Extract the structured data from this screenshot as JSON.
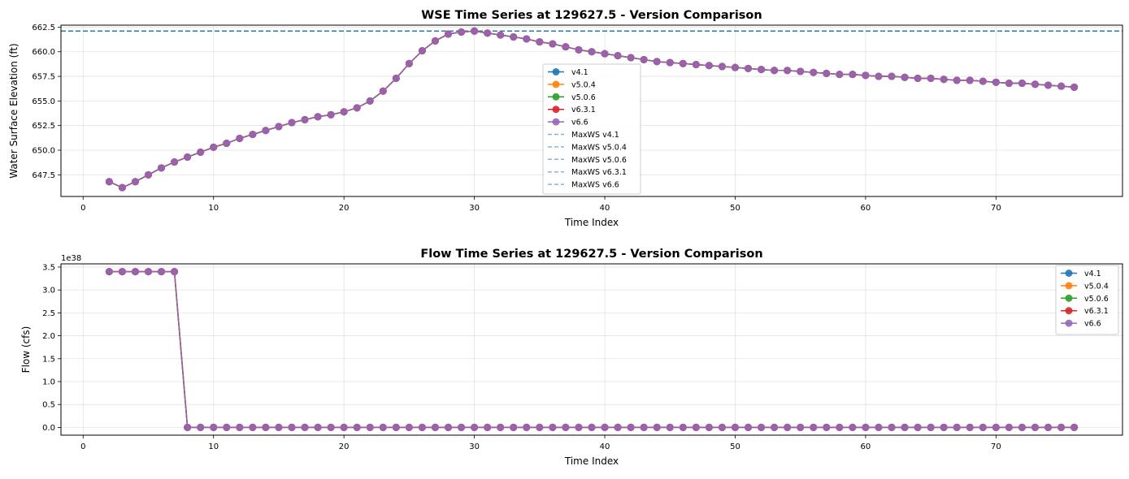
{
  "chart_data": [
    {
      "type": "line",
      "title": "WSE Time Series at 129627.5 - Version Comparison",
      "xlabel": "Time Index",
      "ylabel": "Water Surface Elevation (ft)",
      "xlim": [
        -1.7,
        79.7
      ],
      "ylim": [
        645.3,
        662.7
      ],
      "xticks": [
        0,
        10,
        20,
        30,
        40,
        50,
        60,
        70
      ],
      "yticks": [
        647.5,
        650.0,
        652.5,
        655.0,
        657.5,
        660.0,
        662.5
      ],
      "ytick_labels": [
        "647.5",
        "650.0",
        "652.5",
        "655.0",
        "657.5",
        "660.0",
        "662.5"
      ],
      "grid": true,
      "legend_position": "center",
      "x": [
        2,
        3,
        4,
        5,
        6,
        7,
        8,
        9,
        10,
        11,
        12,
        13,
        14,
        15,
        16,
        17,
        18,
        19,
        20,
        21,
        22,
        23,
        24,
        25,
        26,
        27,
        28,
        29,
        30,
        31,
        32,
        33,
        34,
        35,
        36,
        37,
        38,
        39,
        40,
        41,
        42,
        43,
        44,
        45,
        46,
        47,
        48,
        49,
        50,
        51,
        52,
        53,
        54,
        55,
        56,
        57,
        58,
        59,
        60,
        61,
        62,
        63,
        64,
        65,
        66,
        67,
        68,
        69,
        70,
        71,
        72,
        73,
        74,
        75,
        76
      ],
      "series": [
        {
          "name": "v4.1",
          "color": "#1f77b4",
          "values": [
            646.8,
            646.2,
            646.8,
            647.5,
            648.2,
            648.8,
            649.3,
            649.8,
            650.3,
            650.7,
            651.2,
            651.6,
            652.0,
            652.4,
            652.8,
            653.1,
            653.4,
            653.6,
            653.9,
            654.3,
            655.0,
            656.0,
            657.3,
            658.8,
            660.1,
            661.1,
            661.8,
            662.0,
            662.1,
            661.9,
            661.7,
            661.5,
            661.3,
            661.0,
            660.8,
            660.5,
            660.2,
            660.0,
            659.8,
            659.6,
            659.4,
            659.2,
            659.0,
            658.9,
            658.8,
            658.7,
            658.6,
            658.5,
            658.4,
            658.3,
            658.2,
            658.1,
            658.1,
            658.0,
            657.9,
            657.8,
            657.7,
            657.7,
            657.6,
            657.5,
            657.5,
            657.4,
            657.3,
            657.3,
            657.2,
            657.1,
            657.1,
            657.0,
            656.9,
            656.8,
            656.8,
            656.7,
            656.6,
            656.5,
            656.4
          ]
        },
        {
          "name": "v5.0.4",
          "color": "#ff7f0e",
          "values": [
            646.8,
            646.2,
            646.8,
            647.5,
            648.2,
            648.8,
            649.3,
            649.8,
            650.3,
            650.7,
            651.2,
            651.6,
            652.0,
            652.4,
            652.8,
            653.1,
            653.4,
            653.6,
            653.9,
            654.3,
            655.0,
            656.0,
            657.3,
            658.8,
            660.1,
            661.1,
            661.8,
            662.0,
            662.1,
            661.9,
            661.7,
            661.5,
            661.3,
            661.0,
            660.8,
            660.5,
            660.2,
            660.0,
            659.8,
            659.6,
            659.4,
            659.2,
            659.0,
            658.9,
            658.8,
            658.7,
            658.6,
            658.5,
            658.4,
            658.3,
            658.2,
            658.1,
            658.1,
            658.0,
            657.9,
            657.8,
            657.7,
            657.7,
            657.6,
            657.5,
            657.5,
            657.4,
            657.3,
            657.3,
            657.2,
            657.1,
            657.1,
            657.0,
            656.9,
            656.8,
            656.8,
            656.7,
            656.6,
            656.5,
            656.4
          ]
        },
        {
          "name": "v5.0.6",
          "color": "#2ca02c",
          "values": [
            646.8,
            646.2,
            646.8,
            647.5,
            648.2,
            648.8,
            649.3,
            649.8,
            650.3,
            650.7,
            651.2,
            651.6,
            652.0,
            652.4,
            652.8,
            653.1,
            653.4,
            653.6,
            653.9,
            654.3,
            655.0,
            656.0,
            657.3,
            658.8,
            660.1,
            661.1,
            661.8,
            662.0,
            662.1,
            661.9,
            661.7,
            661.5,
            661.3,
            661.0,
            660.8,
            660.5,
            660.2,
            660.0,
            659.8,
            659.6,
            659.4,
            659.2,
            659.0,
            658.9,
            658.8,
            658.7,
            658.6,
            658.5,
            658.4,
            658.3,
            658.2,
            658.1,
            658.1,
            658.0,
            657.9,
            657.8,
            657.7,
            657.7,
            657.6,
            657.5,
            657.5,
            657.4,
            657.3,
            657.3,
            657.2,
            657.1,
            657.1,
            657.0,
            656.9,
            656.8,
            656.8,
            656.7,
            656.6,
            656.5,
            656.4
          ]
        },
        {
          "name": "v6.3.1",
          "color": "#d62728",
          "values": [
            646.8,
            646.2,
            646.8,
            647.5,
            648.2,
            648.8,
            649.3,
            649.8,
            650.3,
            650.7,
            651.2,
            651.6,
            652.0,
            652.4,
            652.8,
            653.1,
            653.4,
            653.6,
            653.9,
            654.3,
            655.0,
            656.0,
            657.3,
            658.8,
            660.1,
            661.1,
            661.8,
            662.0,
            662.1,
            661.9,
            661.7,
            661.5,
            661.3,
            661.0,
            660.8,
            660.5,
            660.2,
            660.0,
            659.8,
            659.6,
            659.4,
            659.2,
            659.0,
            658.9,
            658.8,
            658.7,
            658.6,
            658.5,
            658.4,
            658.3,
            658.2,
            658.1,
            658.1,
            658.0,
            657.9,
            657.8,
            657.7,
            657.7,
            657.6,
            657.5,
            657.5,
            657.4,
            657.3,
            657.3,
            657.2,
            657.1,
            657.1,
            657.0,
            656.9,
            656.8,
            656.8,
            656.7,
            656.6,
            656.5,
            656.4
          ]
        },
        {
          "name": "v6.6",
          "color": "#9467bd",
          "values": [
            646.8,
            646.2,
            646.8,
            647.5,
            648.2,
            648.8,
            649.3,
            649.8,
            650.3,
            650.7,
            651.2,
            651.6,
            652.0,
            652.4,
            652.8,
            653.1,
            653.4,
            653.6,
            653.9,
            654.3,
            655.0,
            656.0,
            657.3,
            658.8,
            660.1,
            661.1,
            661.8,
            662.0,
            662.1,
            661.9,
            661.7,
            661.5,
            661.3,
            661.0,
            660.8,
            660.5,
            660.2,
            660.0,
            659.8,
            659.6,
            659.4,
            659.2,
            659.0,
            658.9,
            658.8,
            658.7,
            658.6,
            658.5,
            658.4,
            658.3,
            658.2,
            658.1,
            658.1,
            658.0,
            657.9,
            657.8,
            657.7,
            657.7,
            657.6,
            657.5,
            657.5,
            657.4,
            657.3,
            657.3,
            657.2,
            657.1,
            657.1,
            657.0,
            656.9,
            656.8,
            656.8,
            656.7,
            656.6,
            656.5,
            656.4
          ]
        }
      ],
      "hlines": [
        {
          "name": "MaxWS v4.1",
          "value": 662.1,
          "color": "#1f77b4"
        },
        {
          "name": "MaxWS v5.0.4",
          "value": 662.1,
          "color": "#1f77b4"
        },
        {
          "name": "MaxWS v5.0.6",
          "value": 662.1,
          "color": "#1f77b4"
        },
        {
          "name": "MaxWS v6.3.1",
          "value": 662.1,
          "color": "#1f77b4"
        },
        {
          "name": "MaxWS v6.6",
          "value": 662.1,
          "color": "#1f77b4"
        }
      ]
    },
    {
      "type": "line",
      "title": "Flow Time Series at 129627.5 - Version Comparison",
      "xlabel": "Time Index",
      "ylabel": "Flow (cfs)",
      "y_scale_label": "1e38",
      "y_unit_multiplier": "1e38",
      "xlim": [
        -1.7,
        79.7
      ],
      "ylim": [
        -0.17,
        3.57
      ],
      "xticks": [
        0,
        10,
        20,
        30,
        40,
        50,
        60,
        70
      ],
      "yticks": [
        0.0,
        0.5,
        1.0,
        1.5,
        2.0,
        2.5,
        3.0,
        3.5
      ],
      "ytick_labels": [
        "0.0",
        "0.5",
        "1.0",
        "1.5",
        "2.0",
        "2.5",
        "3.0",
        "3.5"
      ],
      "grid": true,
      "legend_position": "top-right",
      "x": [
        2,
        3,
        4,
        5,
        6,
        7,
        8,
        9,
        10,
        11,
        12,
        13,
        14,
        15,
        16,
        17,
        18,
        19,
        20,
        21,
        22,
        23,
        24,
        25,
        26,
        27,
        28,
        29,
        30,
        31,
        32,
        33,
        34,
        35,
        36,
        37,
        38,
        39,
        40,
        41,
        42,
        43,
        44,
        45,
        46,
        47,
        48,
        49,
        50,
        51,
        52,
        53,
        54,
        55,
        56,
        57,
        58,
        59,
        60,
        61,
        62,
        63,
        64,
        65,
        66,
        67,
        68,
        69,
        70,
        71,
        72,
        73,
        74,
        75,
        76
      ],
      "series": [
        {
          "name": "v4.1",
          "color": "#1f77b4",
          "values": [
            3.4,
            3.4,
            3.4,
            3.4,
            3.4,
            3.4,
            0,
            0,
            0,
            0,
            0,
            0,
            0,
            0,
            0,
            0,
            0,
            0,
            0,
            0,
            0,
            0,
            0,
            0,
            0,
            0,
            0,
            0,
            0,
            0,
            0,
            0,
            0,
            0,
            0,
            0,
            0,
            0,
            0,
            0,
            0,
            0,
            0,
            0,
            0,
            0,
            0,
            0,
            0,
            0,
            0,
            0,
            0,
            0,
            0,
            0,
            0,
            0,
            0,
            0,
            0,
            0,
            0,
            0,
            0,
            0,
            0,
            0,
            0,
            0,
            0,
            0,
            0,
            0,
            0
          ]
        },
        {
          "name": "v5.0.4",
          "color": "#ff7f0e",
          "values": [
            3.4,
            3.4,
            3.4,
            3.4,
            3.4,
            3.4,
            0,
            0,
            0,
            0,
            0,
            0,
            0,
            0,
            0,
            0,
            0,
            0,
            0,
            0,
            0,
            0,
            0,
            0,
            0,
            0,
            0,
            0,
            0,
            0,
            0,
            0,
            0,
            0,
            0,
            0,
            0,
            0,
            0,
            0,
            0,
            0,
            0,
            0,
            0,
            0,
            0,
            0,
            0,
            0,
            0,
            0,
            0,
            0,
            0,
            0,
            0,
            0,
            0,
            0,
            0,
            0,
            0,
            0,
            0,
            0,
            0,
            0,
            0,
            0,
            0,
            0,
            0,
            0,
            0
          ]
        },
        {
          "name": "v5.0.6",
          "color": "#2ca02c",
          "values": [
            3.4,
            3.4,
            3.4,
            3.4,
            3.4,
            3.4,
            0,
            0,
            0,
            0,
            0,
            0,
            0,
            0,
            0,
            0,
            0,
            0,
            0,
            0,
            0,
            0,
            0,
            0,
            0,
            0,
            0,
            0,
            0,
            0,
            0,
            0,
            0,
            0,
            0,
            0,
            0,
            0,
            0,
            0,
            0,
            0,
            0,
            0,
            0,
            0,
            0,
            0,
            0,
            0,
            0,
            0,
            0,
            0,
            0,
            0,
            0,
            0,
            0,
            0,
            0,
            0,
            0,
            0,
            0,
            0,
            0,
            0,
            0,
            0,
            0,
            0,
            0,
            0,
            0
          ]
        },
        {
          "name": "v6.3.1",
          "color": "#d62728",
          "values": [
            3.4,
            3.4,
            3.4,
            3.4,
            3.4,
            3.4,
            0,
            0,
            0,
            0,
            0,
            0,
            0,
            0,
            0,
            0,
            0,
            0,
            0,
            0,
            0,
            0,
            0,
            0,
            0,
            0,
            0,
            0,
            0,
            0,
            0,
            0,
            0,
            0,
            0,
            0,
            0,
            0,
            0,
            0,
            0,
            0,
            0,
            0,
            0,
            0,
            0,
            0,
            0,
            0,
            0,
            0,
            0,
            0,
            0,
            0,
            0,
            0,
            0,
            0,
            0,
            0,
            0,
            0,
            0,
            0,
            0,
            0,
            0,
            0,
            0,
            0,
            0,
            0,
            0
          ]
        },
        {
          "name": "v6.6",
          "color": "#9467bd",
          "values": [
            3.4,
            3.4,
            3.4,
            3.4,
            3.4,
            3.4,
            0,
            0,
            0,
            0,
            0,
            0,
            0,
            0,
            0,
            0,
            0,
            0,
            0,
            0,
            0,
            0,
            0,
            0,
            0,
            0,
            0,
            0,
            0,
            0,
            0,
            0,
            0,
            0,
            0,
            0,
            0,
            0,
            0,
            0,
            0,
            0,
            0,
            0,
            0,
            0,
            0,
            0,
            0,
            0,
            0,
            0,
            0,
            0,
            0,
            0,
            0,
            0,
            0,
            0,
            0,
            0,
            0,
            0,
            0,
            0,
            0,
            0,
            0,
            0,
            0,
            0,
            0,
            0,
            0
          ]
        }
      ]
    }
  ]
}
